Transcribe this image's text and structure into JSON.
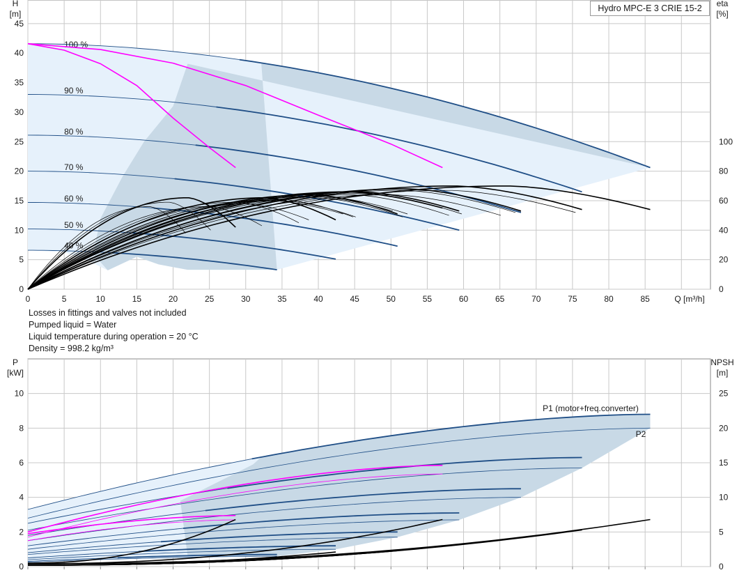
{
  "title": "Hydro MPC-E 3 CRIE 15-2",
  "notes": [
    "Losses in fittings and valves not included",
    "Pumped liquid = Water",
    "Liquid temperature during operation = 20 °C",
    "Density = 998.2 kg/m³"
  ],
  "colors": {
    "blue": "#1f4e86",
    "magenta": "#ff00ff",
    "black": "#000000",
    "area": "#c8d9e6",
    "light_area": "#e6f1fb",
    "grid": "#c8c8c8"
  },
  "chart_data": [
    {
      "type": "line",
      "name": "QH",
      "ylabel_top": "H",
      "ylabel_unit": "[m]",
      "y2label_top": "eta",
      "y2label_unit": "[%]",
      "xlabel": "Q [m³/h]",
      "xlim": [
        0,
        94
      ],
      "ylim": [
        0,
        49
      ],
      "xticks": [
        0,
        5,
        10,
        15,
        20,
        25,
        30,
        35,
        40,
        45,
        50,
        55,
        60,
        65,
        70,
        75,
        80,
        85
      ],
      "yticks": [
        0,
        5,
        10,
        15,
        20,
        25,
        30,
        35,
        40,
        45
      ],
      "y2ticks": [
        0,
        20,
        40,
        60,
        80,
        100
      ],
      "speed_labels": [
        {
          "text": "100 %",
          "q": 5,
          "h": 41
        },
        {
          "text": "90 %",
          "q": 5,
          "h": 33.2
        },
        {
          "text": "80 %",
          "q": 5,
          "h": 26.2
        },
        {
          "text": "70 %",
          "q": 5,
          "h": 20.2
        },
        {
          "text": "60 %",
          "q": 5,
          "h": 14.9
        },
        {
          "text": "50 %",
          "q": 5,
          "h": 10.4
        },
        {
          "text": "40 %",
          "q": 5,
          "h": 6.9
        }
      ],
      "qh_curves": [
        {
          "speed": 100,
          "h0": 41.6,
          "qmax": 85.7,
          "hend": 20.6
        },
        {
          "speed": 90,
          "h0": 33.0,
          "qmax": 76.3,
          "hend": 16.5
        },
        {
          "speed": 80,
          "h0": 26.1,
          "qmax": 67.9,
          "hend": 13.0
        },
        {
          "speed": 70,
          "h0": 20.0,
          "qmax": 59.4,
          "hend": 10.0
        },
        {
          "speed": 60,
          "h0": 14.7,
          "qmax": 50.9,
          "hend": 7.3
        },
        {
          "speed": 50,
          "h0": 10.2,
          "qmax": 42.4,
          "hend": 5.1
        },
        {
          "speed": 40,
          "h0": 6.6,
          "qmax": 34.3,
          "hend": 3.3
        }
      ],
      "magenta_curves": [
        {
          "q": [
            0,
            5,
            10,
            15,
            20,
            25,
            28.6
          ],
          "h": [
            41.6,
            40.5,
            38.2,
            34.5,
            29.0,
            24.0,
            20.6
          ]
        },
        {
          "q": [
            0,
            10,
            20,
            30,
            40,
            50,
            57.1
          ],
          "h": [
            41.6,
            40.6,
            38.3,
            34.5,
            29.5,
            24.6,
            20.6
          ]
        }
      ],
      "eta_curves_pump_counts": [
        1,
        2,
        3
      ],
      "eta_endpoints": [
        {
          "qmax": 28.6,
          "eta_peak": 62,
          "eta_end": 42
        },
        {
          "qmax": 42.4,
          "eta_peak": 62,
          "eta_end": 47
        },
        {
          "qmax": 50.9,
          "eta_peak": 64,
          "eta_end": 51
        },
        {
          "qmax": 57.1,
          "eta_peak": 66,
          "eta_end": 55
        },
        {
          "qmax": 59.4,
          "eta_peak": 66,
          "eta_end": 53
        },
        {
          "qmax": 67.9,
          "eta_peak": 68,
          "eta_end": 53
        },
        {
          "qmax": 76.3,
          "eta_peak": 70,
          "eta_end": 54
        },
        {
          "qmax": 85.7,
          "eta_peak": 70,
          "eta_end": 54
        }
      ]
    },
    {
      "type": "line",
      "name": "Power / NPSH",
      "ylabel_top": "P",
      "ylabel_unit": "[kW]",
      "y2label_top": "NPSH",
      "y2label_unit": "[m]",
      "xlim": [
        0,
        94
      ],
      "ylim": [
        0,
        12
      ],
      "yticks": [
        0,
        2,
        4,
        6,
        8,
        10
      ],
      "y2ticks": [
        0,
        5,
        10,
        15,
        20,
        25
      ],
      "series_labels": [
        "P1 (motor+freq.converter)",
        "P2"
      ],
      "p1_curves": [
        {
          "qmax": 85.7,
          "p0": 3.3,
          "pend": 8.8
        },
        {
          "qmax": 76.3,
          "p0": 2.5,
          "pend": 6.3
        },
        {
          "qmax": 67.9,
          "p0": 1.8,
          "pend": 4.5
        },
        {
          "qmax": 59.4,
          "p0": 1.2,
          "pend": 3.1
        },
        {
          "qmax": 50.9,
          "p0": 0.8,
          "pend": 2.0
        },
        {
          "qmax": 42.4,
          "p0": 0.5,
          "pend": 1.2
        },
        {
          "qmax": 34.3,
          "p0": 0.3,
          "pend": 0.7
        }
      ],
      "p2_curves": [
        {
          "qmax": 85.7,
          "p0": 2.8,
          "pend": 8.0
        },
        {
          "qmax": 76.3,
          "p0": 2.1,
          "pend": 5.7
        },
        {
          "qmax": 67.9,
          "p0": 1.5,
          "pend": 4.0
        },
        {
          "qmax": 59.4,
          "p0": 1.0,
          "pend": 2.7
        },
        {
          "qmax": 50.9,
          "p0": 0.7,
          "pend": 1.7
        },
        {
          "qmax": 42.4,
          "p0": 0.4,
          "pend": 1.0
        },
        {
          "qmax": 34.3,
          "p0": 0.25,
          "pend": 0.6
        }
      ],
      "magenta_p": [
        {
          "qmax": 57.1,
          "p0": 2.0,
          "pend": 5.85
        },
        {
          "qmax": 57.1,
          "p0": 1.7,
          "pend": 5.35
        },
        {
          "qmax": 28.6,
          "p0": 1.9,
          "pend": 2.95
        },
        {
          "qmax": 28.6,
          "p0": 1.5,
          "pend": 2.7
        }
      ],
      "npsh_curves": [
        {
          "qmax": 28.6,
          "n0": 0.5,
          "nend": 6.8
        },
        {
          "qmax": 57.1,
          "n0": 0.4,
          "nend": 6.8
        },
        {
          "qmax": 85.7,
          "n0": 0.4,
          "nend": 6.8
        },
        {
          "qmax": 42.4,
          "n0": 0.2,
          "nend": 2.1
        },
        {
          "qmax": 50.9,
          "n0": 0.2,
          "nend": 2.3
        },
        {
          "qmax": 59.4,
          "n0": 0.2,
          "nend": 3.2
        },
        {
          "qmax": 67.9,
          "n0": 0.2,
          "nend": 4.2
        },
        {
          "qmax": 76.3,
          "n0": 0.2,
          "nend": 5.3
        }
      ]
    }
  ]
}
